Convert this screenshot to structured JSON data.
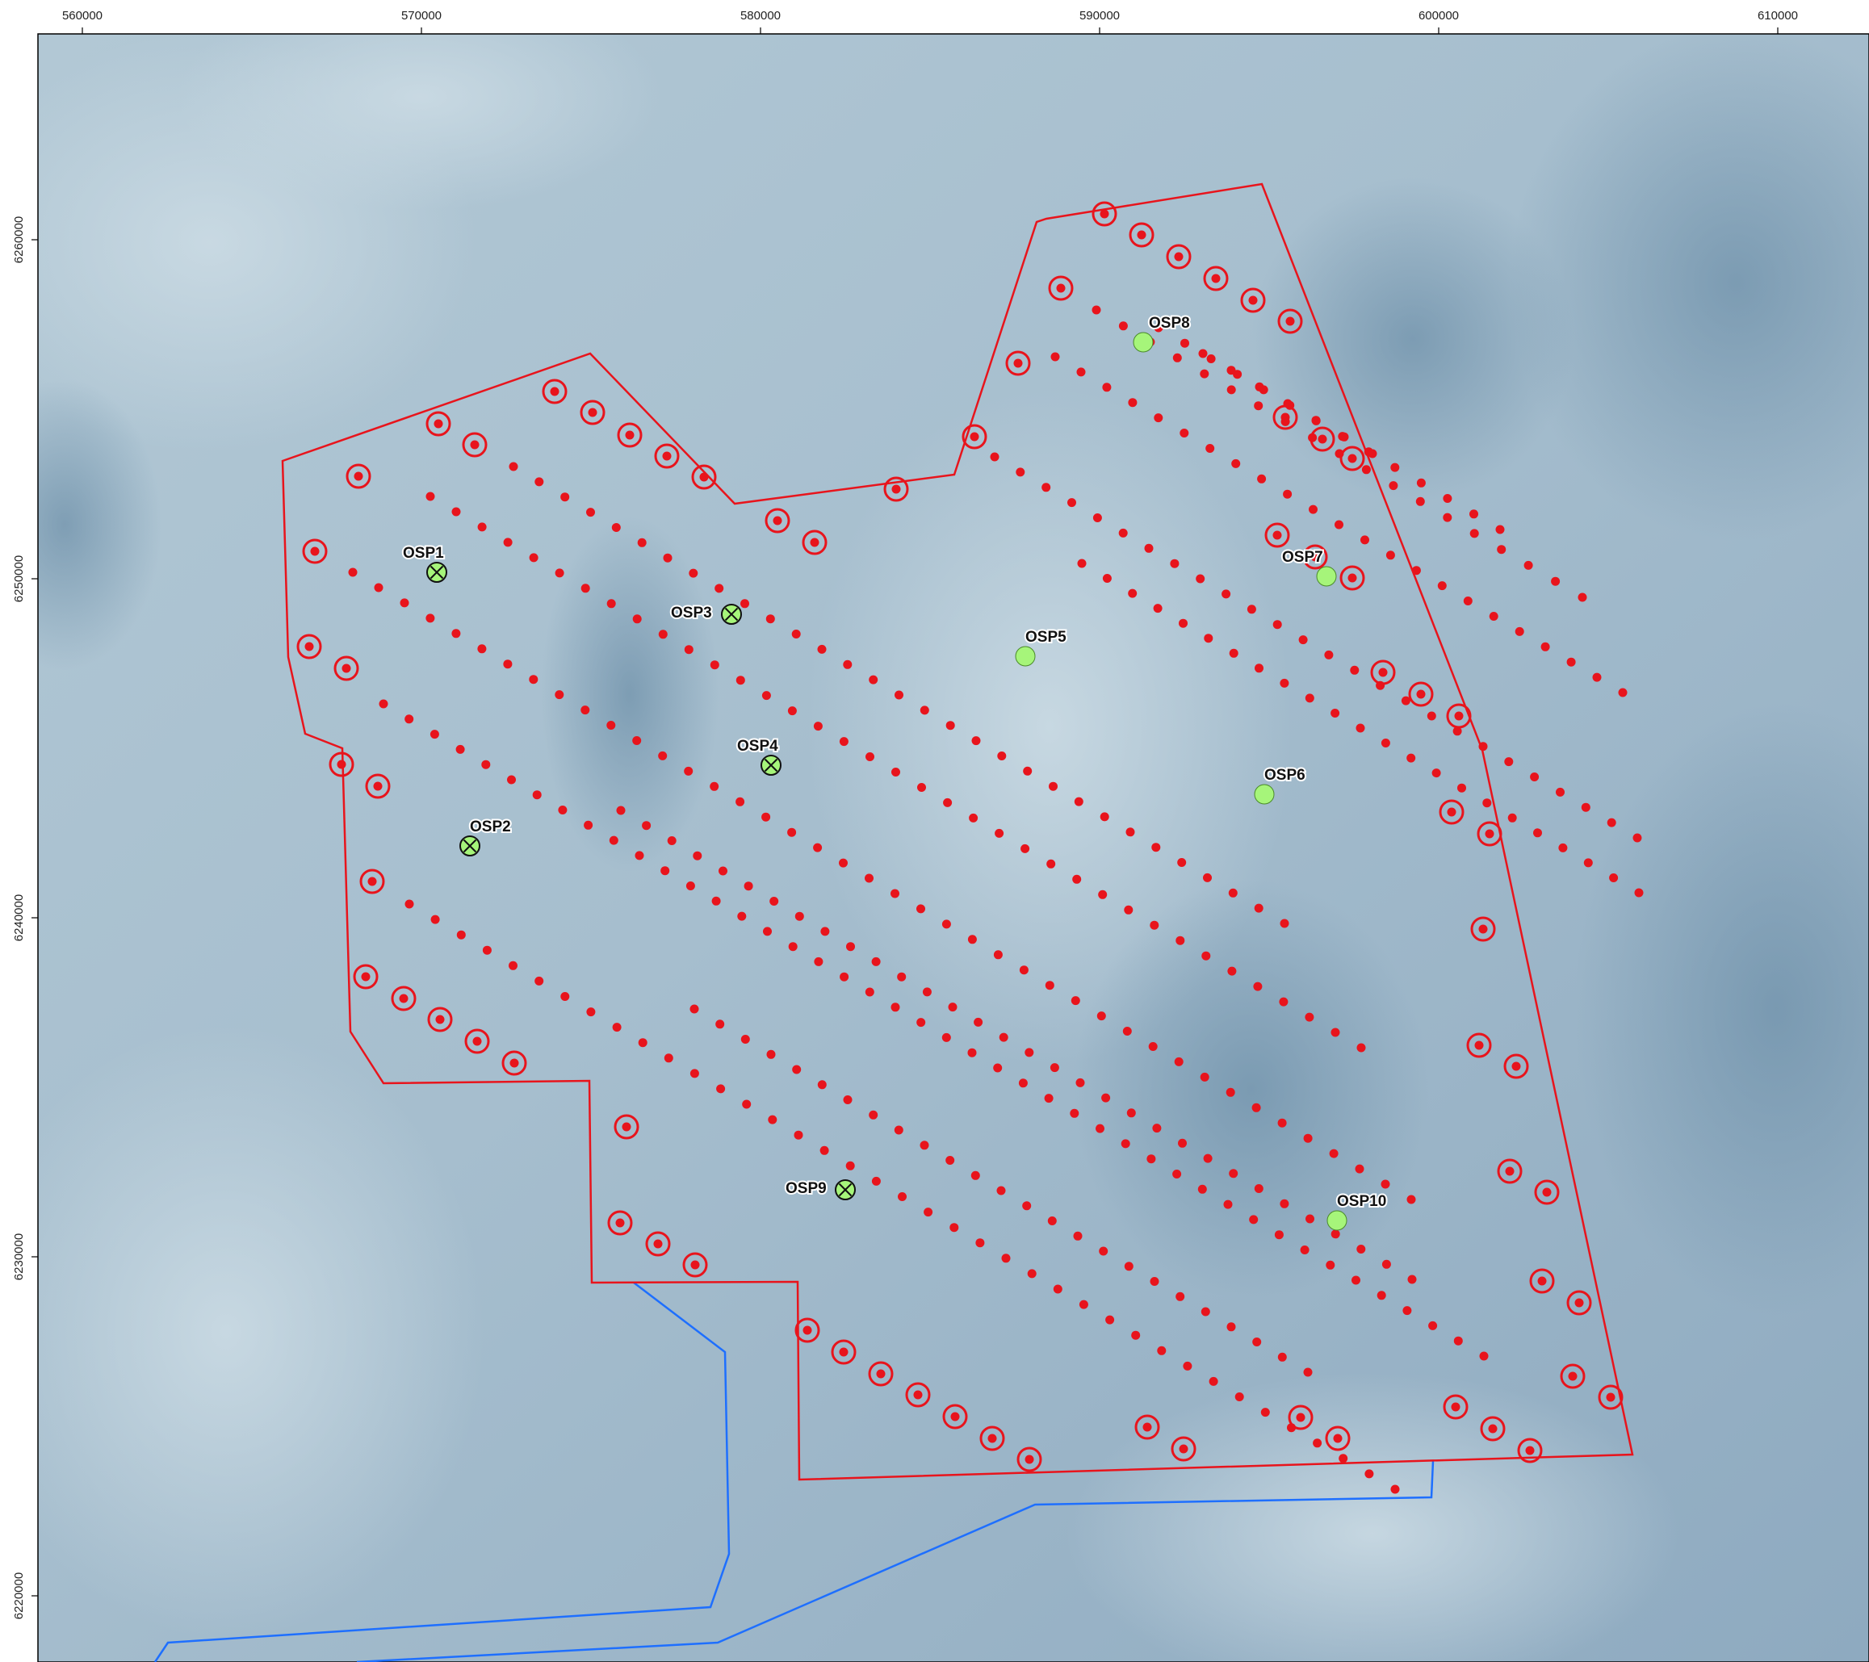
{
  "map": {
    "x_ticks": [
      "560000",
      "570000",
      "580000",
      "590000",
      "600000",
      "610000"
    ],
    "y_ticks": [
      "6260000",
      "6250000",
      "6240000",
      "6230000",
      "6220000"
    ],
    "colors": {
      "boundary": "#e8141c",
      "cable": "#1e6fff",
      "turbine": "#e8141c",
      "substation_fill": "#a6f57a",
      "sea_dark": "#7f9db3",
      "sea_light": "#b9cdd9"
    },
    "substations": [
      {
        "label": "OSP1",
        "crossed": true
      },
      {
        "label": "OSP2",
        "crossed": true
      },
      {
        "label": "OSP3",
        "crossed": true
      },
      {
        "label": "OSP4",
        "crossed": true
      },
      {
        "label": "OSP5",
        "crossed": false
      },
      {
        "label": "OSP6",
        "crossed": false
      },
      {
        "label": "OSP7",
        "crossed": false
      },
      {
        "label": "OSP8",
        "crossed": false
      },
      {
        "label": "OSP9",
        "crossed": true
      },
      {
        "label": "OSP10",
        "crossed": false
      }
    ]
  }
}
